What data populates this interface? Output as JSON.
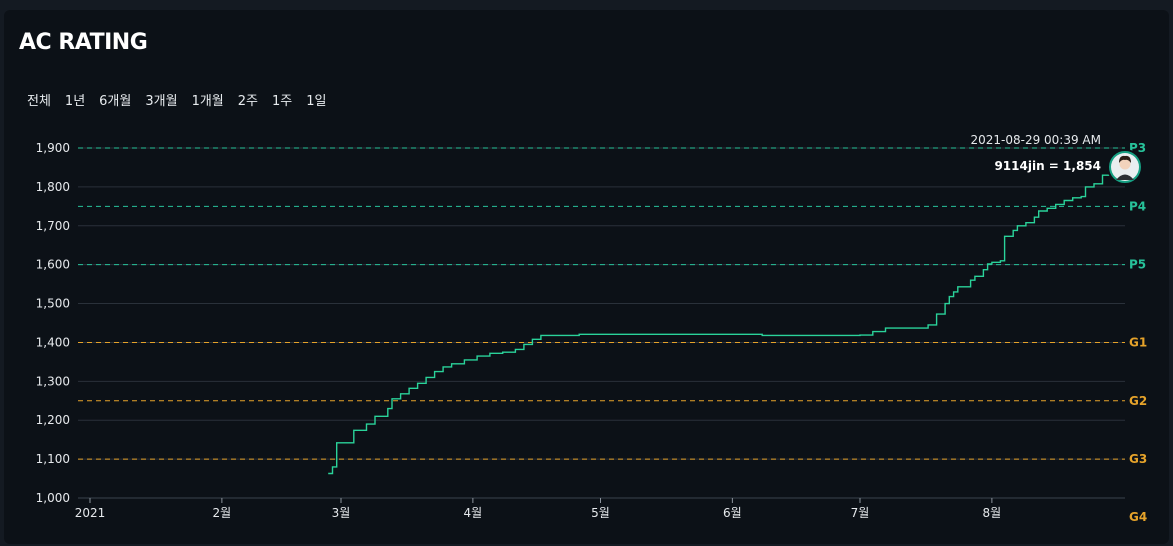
{
  "title": "AC RATING",
  "ranges": [
    "전체",
    "1년",
    "6개월",
    "3개월",
    "1개월",
    "2주",
    "1주",
    "1일"
  ],
  "colors": {
    "line": "#2ad39a",
    "platinum": "#27c29a",
    "gold": "#e6a32a",
    "grid": "#2a313a"
  },
  "tooltip": {
    "date": "2021-08-29 00:39 AM",
    "label": "9114jin = 1,854"
  },
  "chart_data": {
    "type": "line",
    "title": "AC RATING",
    "xlabel": "",
    "ylabel": "",
    "ylim": [
      1000,
      1900
    ],
    "y_ticks": [
      1000,
      1100,
      1200,
      1300,
      1400,
      1500,
      1600,
      1700,
      1800,
      1900
    ],
    "y_tick_labels": [
      "1,000",
      "1,100",
      "1,200",
      "1,300",
      "1,400",
      "1,500",
      "1,600",
      "1,700",
      "1,800",
      "1,900"
    ],
    "x_ticks": [
      {
        "date": "2021-01-01",
        "label": "2021"
      },
      {
        "date": "2021-02-01",
        "label": "2월"
      },
      {
        "date": "2021-03-01",
        "label": "3월"
      },
      {
        "date": "2021-04-01",
        "label": "4월"
      },
      {
        "date": "2021-05-01",
        "label": "5월"
      },
      {
        "date": "2021-06-01",
        "label": "6월"
      },
      {
        "date": "2021-07-01",
        "label": "7월"
      },
      {
        "date": "2021-08-01",
        "label": "8월"
      }
    ],
    "xlim": [
      "2021-01-01",
      "2021-08-29"
    ],
    "tiers": [
      {
        "label": "P3",
        "value": 1900,
        "kind": "platinum"
      },
      {
        "label": "P4",
        "value": 1750,
        "kind": "platinum"
      },
      {
        "label": "P5",
        "value": 1600,
        "kind": "platinum"
      },
      {
        "label": "G1",
        "value": 1400,
        "kind": "gold"
      },
      {
        "label": "G2",
        "value": 1250,
        "kind": "gold"
      },
      {
        "label": "G3",
        "value": 1100,
        "kind": "gold"
      },
      {
        "label": "G4",
        "value": 950,
        "kind": "gold"
      }
    ],
    "series": [
      {
        "name": "9114jin",
        "points": [
          [
            "2021-02-26",
            1063
          ],
          [
            "2021-02-27",
            1080
          ],
          [
            "2021-02-28",
            1142
          ],
          [
            "2021-03-04",
            1174
          ],
          [
            "2021-03-07",
            1190
          ],
          [
            "2021-03-09",
            1210
          ],
          [
            "2021-03-12",
            1230
          ],
          [
            "2021-03-13",
            1255
          ],
          [
            "2021-03-15",
            1268
          ],
          [
            "2021-03-17",
            1282
          ],
          [
            "2021-03-19",
            1295
          ],
          [
            "2021-03-21",
            1310
          ],
          [
            "2021-03-23",
            1325
          ],
          [
            "2021-03-25",
            1337
          ],
          [
            "2021-03-27",
            1345
          ],
          [
            "2021-03-30",
            1355
          ],
          [
            "2021-04-02",
            1365
          ],
          [
            "2021-04-05",
            1372
          ],
          [
            "2021-04-08",
            1375
          ],
          [
            "2021-04-11",
            1382
          ],
          [
            "2021-04-13",
            1395
          ],
          [
            "2021-04-15",
            1408
          ],
          [
            "2021-04-17",
            1418
          ],
          [
            "2021-04-26",
            1421
          ],
          [
            "2021-06-08",
            1418
          ],
          [
            "2021-06-20",
            1418
          ],
          [
            "2021-07-01",
            1419
          ],
          [
            "2021-07-04",
            1428
          ],
          [
            "2021-07-07",
            1437
          ],
          [
            "2021-07-17",
            1445
          ],
          [
            "2021-07-19",
            1473
          ],
          [
            "2021-07-21",
            1500
          ],
          [
            "2021-07-22",
            1518
          ],
          [
            "2021-07-23",
            1530
          ],
          [
            "2021-07-24",
            1543
          ],
          [
            "2021-07-27",
            1560
          ],
          [
            "2021-07-28",
            1570
          ],
          [
            "2021-07-30",
            1587
          ],
          [
            "2021-07-31",
            1602
          ],
          [
            "2021-08-01",
            1606
          ],
          [
            "2021-08-03",
            1610
          ],
          [
            "2021-08-04",
            1673
          ],
          [
            "2021-08-06",
            1688
          ],
          [
            "2021-08-07",
            1700
          ],
          [
            "2021-08-09",
            1708
          ],
          [
            "2021-08-11",
            1722
          ],
          [
            "2021-08-12",
            1738
          ],
          [
            "2021-08-14",
            1745
          ],
          [
            "2021-08-16",
            1755
          ],
          [
            "2021-08-18",
            1765
          ],
          [
            "2021-08-20",
            1772
          ],
          [
            "2021-08-22",
            1775
          ],
          [
            "2021-08-23",
            1800
          ],
          [
            "2021-08-25",
            1808
          ],
          [
            "2021-08-27",
            1830
          ],
          [
            "2021-08-29",
            1854
          ]
        ]
      }
    ]
  }
}
